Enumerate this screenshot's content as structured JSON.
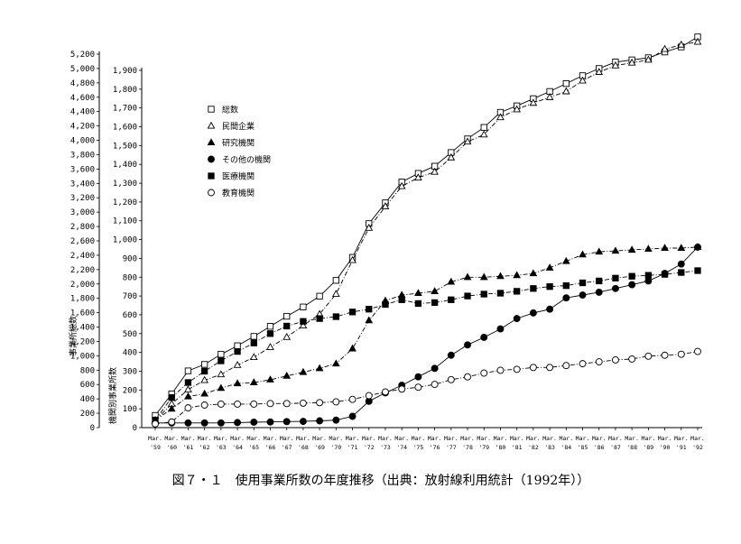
{
  "chart_data": {
    "type": "line",
    "caption": "図７・１　使用事業所数の年度推移（出典：放射線利用統計（1992年））",
    "ylabel_left": "事業所総数",
    "ylabel_right": "機関別事業所数",
    "left_axis": {
      "ylim": [
        0,
        5200
      ],
      "ticks": [
        "0",
        "200",
        "400",
        "600",
        "800",
        "1,000",
        "1,200",
        "1,400",
        "1,600",
        "1,800",
        "2,000",
        "2,200",
        "2,400",
        "2,600",
        "2,800",
        "3,000",
        "3,200",
        "3,400",
        "3,600",
        "3,800",
        "4,000",
        "4,200",
        "4,400",
        "4,600",
        "4,800",
        "5,000",
        "5,200"
      ]
    },
    "right_axis": {
      "ylim": [
        0,
        1900
      ],
      "ticks": [
        "0",
        "100",
        "200",
        "300",
        "400",
        "500",
        "600",
        "700",
        "800",
        "900",
        "1,000",
        "1,100",
        "1,200",
        "1,300",
        "1,400",
        "1,500",
        "1,600",
        "1,700",
        "1,800",
        "1,900"
      ]
    },
    "x_top": [
      "Mar.",
      "Mar.",
      "Mar.",
      "Mar.",
      "Mar.",
      "Mar.",
      "Mar.",
      "Mar.",
      "Mar.",
      "Mar.",
      "Mar.",
      "Mar.",
      "Mar.",
      "Mar.",
      "Mar.",
      "Mar.",
      "Mar.",
      "Mar.",
      "Mar.",
      "Mar.",
      "Mar.",
      "Mar.",
      "Mar.",
      "Mar.",
      "Mar.",
      "Mar.",
      "Mar.",
      "Mar.",
      "Mar.",
      "Mar.",
      "Mar.",
      "Mar.",
      "Mar.",
      "Mar."
    ],
    "x": [
      "'59",
      "'60",
      "'61",
      "'62",
      "'63",
      "'64",
      "'65",
      "'66",
      "'67",
      "'68",
      "'69",
      "'70",
      "'71",
      "'72",
      "'73",
      "'74",
      "'75",
      "'76",
      "'77",
      "'78",
      "'79",
      "'80",
      "'81",
      "'82",
      "'83",
      "'84",
      "'85",
      "'86",
      "'87",
      "'88",
      "'89",
      "'90",
      "'91",
      "'92"
    ],
    "series": [
      {
        "name": "総数",
        "marker": "open-square",
        "axis": "left",
        "style": "solid",
        "values": [
          170,
          470,
          790,
          880,
          1020,
          1140,
          1270,
          1410,
          1550,
          1680,
          1830,
          2050,
          2370,
          2840,
          3130,
          3420,
          3540,
          3640,
          3830,
          4020,
          4180,
          4390,
          4480,
          4580,
          4680,
          4790,
          4900,
          5000,
          5090,
          5120,
          5150,
          5230,
          5300,
          5440
        ]
      },
      {
        "name": "民間企業",
        "marker": "open-triangle",
        "axis": "left",
        "style": "dash-dot",
        "values": [
          100,
          330,
          530,
          660,
          740,
          870,
          980,
          1120,
          1260,
          1420,
          1580,
          1860,
          2330,
          2780,
          3080,
          3360,
          3480,
          3560,
          3760,
          3980,
          4080,
          4320,
          4430,
          4520,
          4600,
          4680,
          4830,
          4950,
          5040,
          5080,
          5120,
          5270,
          5330,
          5370
        ]
      },
      {
        "name": "研究機関",
        "marker": "filled-triangle",
        "axis": "right",
        "style": "dash-dot",
        "values": [
          40,
          100,
          165,
          180,
          210,
          235,
          240,
          255,
          275,
          295,
          315,
          340,
          420,
          570,
          675,
          705,
          715,
          725,
          775,
          800,
          800,
          805,
          810,
          820,
          850,
          885,
          920,
          935,
          940,
          945,
          950,
          955,
          955,
          960
        ]
      },
      {
        "name": "その他の機関",
        "marker": "filled-circle",
        "axis": "right",
        "style": "solid",
        "values": [
          25,
          25,
          25,
          25,
          25,
          27,
          29,
          30,
          32,
          33,
          36,
          40,
          60,
          140,
          185,
          225,
          270,
          315,
          385,
          440,
          480,
          525,
          580,
          610,
          630,
          690,
          705,
          720,
          740,
          760,
          780,
          820,
          870,
          960
        ]
      },
      {
        "name": "医療機関",
        "marker": "filled-square",
        "axis": "right",
        "style": "dash-dot",
        "values": [
          40,
          160,
          240,
          300,
          355,
          405,
          450,
          500,
          540,
          565,
          580,
          590,
          615,
          630,
          655,
          680,
          660,
          665,
          680,
          700,
          710,
          715,
          725,
          740,
          750,
          755,
          770,
          780,
          795,
          805,
          810,
          815,
          825,
          835
        ]
      },
      {
        "name": "教育機関",
        "marker": "open-circle",
        "axis": "right",
        "style": "dash-dot",
        "values": [
          20,
          30,
          105,
          120,
          125,
          125,
          125,
          128,
          128,
          130,
          133,
          137,
          150,
          170,
          190,
          205,
          215,
          230,
          255,
          270,
          290,
          305,
          310,
          320,
          320,
          330,
          340,
          350,
          360,
          365,
          380,
          385,
          390,
          405
        ]
      }
    ],
    "grid": false,
    "legend": "top-left"
  }
}
